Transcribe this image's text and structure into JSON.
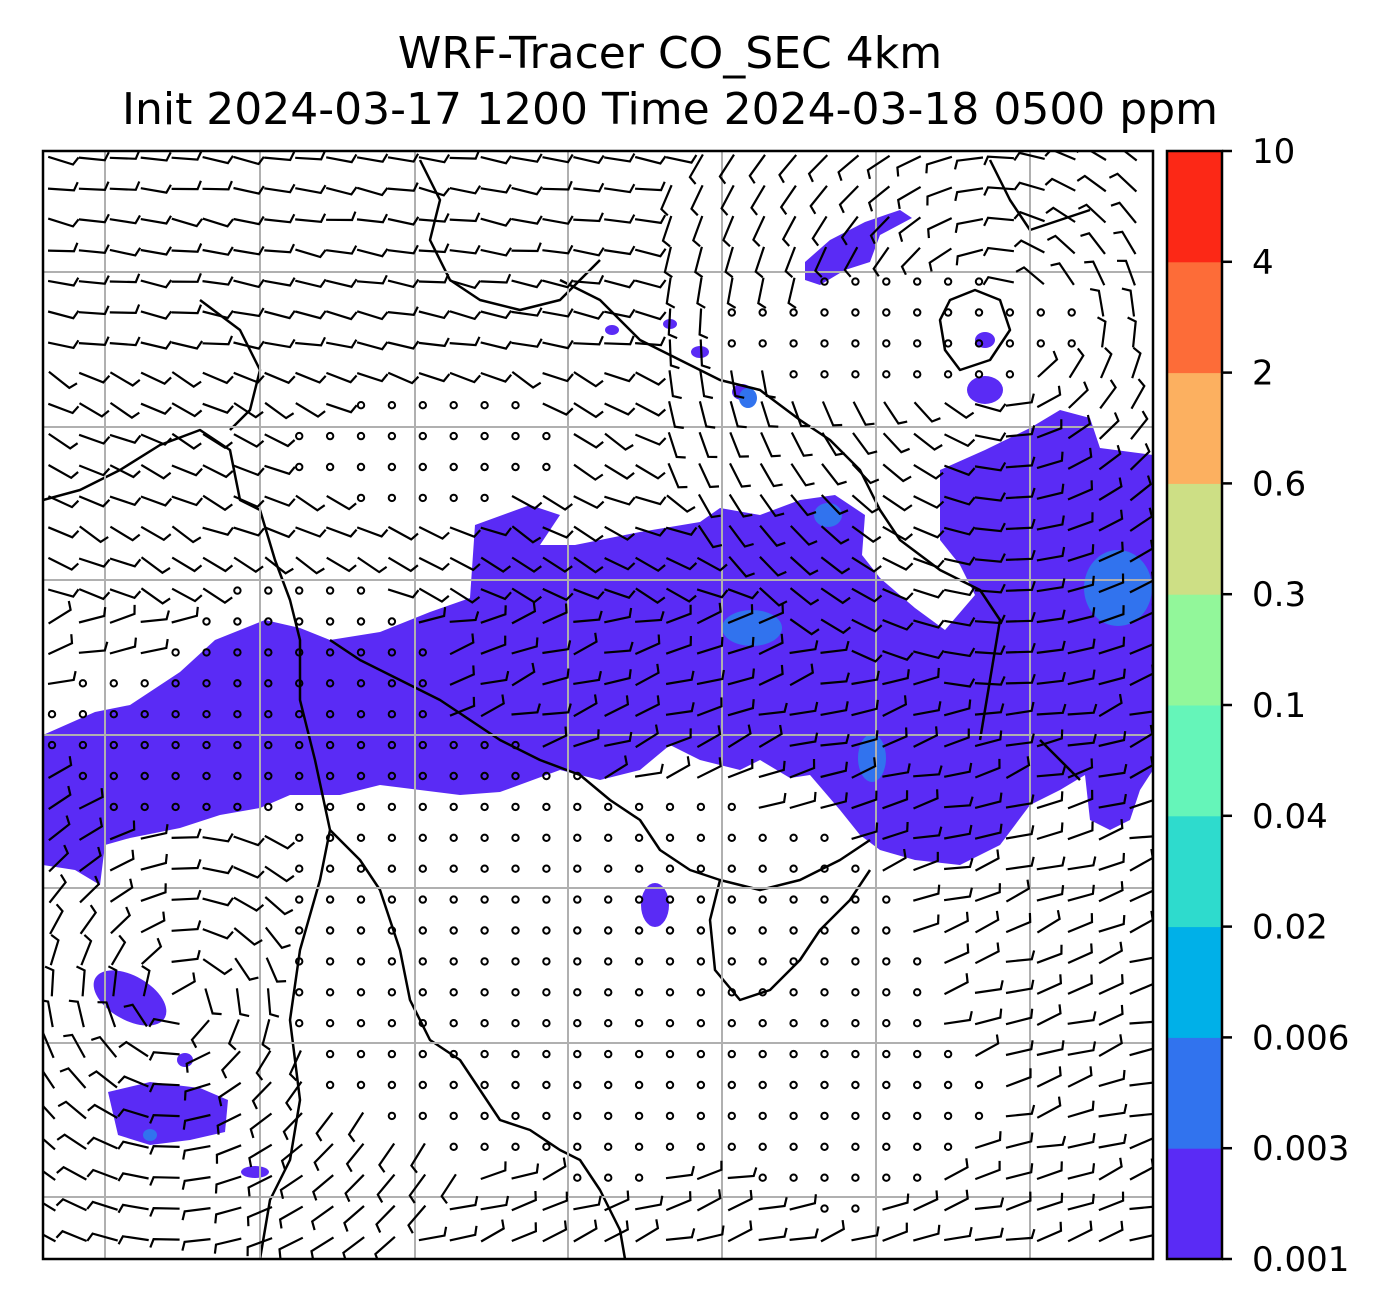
{
  "title": {
    "line1": "WRF-Tracer CO_SEC 4km",
    "line2": "Init 2024-03-17 1200 Time 2024-03-18 0500 ppm"
  },
  "colorbar": {
    "levels": [
      "0.001",
      "0.003",
      "0.006",
      "0.02",
      "0.04",
      "0.1",
      "0.3",
      "0.6",
      "2",
      "4",
      "10"
    ],
    "colors": [
      "#5a2bf5",
      "#3173ee",
      "#00b0e8",
      "#2edbcd",
      "#65f5b9",
      "#92f79a",
      "#cddf85",
      "#fcb060",
      "#fd6c38",
      "#fc2816"
    ]
  },
  "map": {
    "field": "CO_SEC tracer concentration",
    "overlay": "wind barbs",
    "plume_color": "#5a2bf5"
  }
}
